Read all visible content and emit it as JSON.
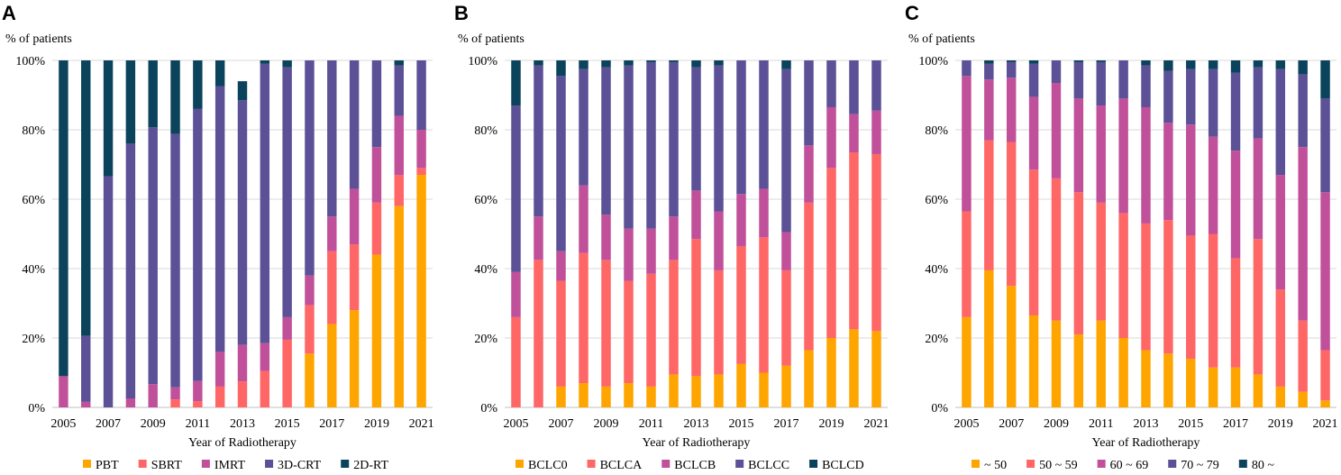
{
  "colors": {
    "s1": "#ffa500",
    "s2": "#ff6666",
    "s3": "#c1509a",
    "s4": "#5c5096",
    "s5": "#0c435c"
  },
  "chart_data": [
    {
      "panel": "A",
      "type": "bar",
      "stacked": true,
      "title": "",
      "ylabel": "% of patients",
      "xlabel": "Year of Radiotherapy",
      "ylim": [
        0,
        100
      ],
      "yticks": [
        "0%",
        "20%",
        "40%",
        "60%",
        "80%",
        "100%"
      ],
      "categories": [
        "2005",
        "2006",
        "2007",
        "2008",
        "2009",
        "2010",
        "2011",
        "2012",
        "2013",
        "2014",
        "2015",
        "2016",
        "2017",
        "2018",
        "2019",
        "2020",
        "2021"
      ],
      "xtick_labels": [
        "2005",
        "",
        "2007",
        "",
        "2009",
        "",
        "2011",
        "",
        "2013",
        "",
        "2015",
        "",
        "2017",
        "",
        "2019",
        "",
        "2021"
      ],
      "legend_position": "bottom",
      "series": [
        {
          "name": "PBT",
          "values": [
            0,
            0,
            0,
            0,
            0,
            0,
            0,
            0,
            0,
            0,
            0,
            15.5,
            24,
            28,
            44,
            58,
            67
          ]
        },
        {
          "name": "SBRT",
          "values": [
            0,
            0,
            0,
            0,
            0,
            2.3,
            1.8,
            6,
            7.5,
            10.5,
            19.5,
            14,
            21,
            19,
            15,
            9,
            2
          ]
        },
        {
          "name": "IMRT",
          "values": [
            9,
            1.6,
            0,
            2.6,
            6.7,
            3.5,
            5.8,
            10,
            10.5,
            8,
            6.5,
            8.5,
            10,
            16,
            16,
            17,
            11
          ]
        },
        {
          "name": "3D-CRT",
          "values": [
            0,
            19,
            66.6,
            73.4,
            74,
            73,
            78.4,
            76.5,
            70.5,
            80.5,
            72,
            62,
            45,
            37,
            25,
            14.5,
            20
          ]
        },
        {
          "name": "2D-RT",
          "values": [
            91,
            79.4,
            33.4,
            24,
            19.3,
            21.2,
            14,
            7.5,
            5.5,
            1,
            2,
            0,
            0,
            0,
            0,
            1.5,
            0
          ]
        }
      ]
    },
    {
      "panel": "B",
      "type": "bar",
      "stacked": true,
      "title": "",
      "ylabel": "% of patients",
      "xlabel": "Year of Radiotherapy",
      "ylim": [
        0,
        100
      ],
      "yticks": [
        "0%",
        "20%",
        "40%",
        "60%",
        "80%",
        "100%"
      ],
      "categories": [
        "2005",
        "2006",
        "2007",
        "2008",
        "2009",
        "2010",
        "2011",
        "2012",
        "2013",
        "2014",
        "2015",
        "2016",
        "2017",
        "2018",
        "2019",
        "2020",
        "2021"
      ],
      "xtick_labels": [
        "2005",
        "",
        "2007",
        "",
        "2009",
        "",
        "2011",
        "",
        "2013",
        "",
        "2015",
        "",
        "2017",
        "",
        "2019",
        "",
        "2021"
      ],
      "legend_position": "bottom",
      "series": [
        {
          "name": "BCLC0",
          "values": [
            0,
            0,
            6,
            7,
            6,
            7,
            6,
            9.5,
            9,
            9.5,
            12.5,
            10,
            12,
            16.5,
            20,
            22.5,
            22
          ]
        },
        {
          "name": "BCLCA",
          "values": [
            26,
            42.5,
            30.5,
            37.5,
            36.5,
            29.5,
            32.5,
            33,
            39.5,
            30,
            34,
            39,
            27.5,
            42.5,
            49,
            51,
            51
          ]
        },
        {
          "name": "BCLCB",
          "values": [
            13,
            12.5,
            8.5,
            19.5,
            13,
            15,
            13,
            12.5,
            14,
            17,
            15,
            14,
            11,
            16.5,
            17.5,
            11,
            12.5
          ]
        },
        {
          "name": "BCLCC",
          "values": [
            48,
            43.5,
            50.5,
            33.5,
            42.5,
            47,
            48,
            44.5,
            35.5,
            42,
            38.5,
            37,
            47,
            24.5,
            13.5,
            15.5,
            14.5
          ]
        },
        {
          "name": "BCLCD",
          "values": [
            13,
            1.5,
            4.5,
            2.5,
            2,
            1.5,
            0.5,
            0.5,
            2,
            1.5,
            0,
            0,
            2.5,
            0,
            0,
            0,
            0
          ]
        }
      ]
    },
    {
      "panel": "C",
      "type": "bar",
      "stacked": true,
      "title": "",
      "ylabel": "% of patients",
      "xlabel": "Year of Radiotherapy",
      "ylim": [
        0,
        100
      ],
      "yticks": [
        "0%",
        "20%",
        "40%",
        "60%",
        "80%",
        "100%"
      ],
      "categories": [
        "2005",
        "2006",
        "2007",
        "2008",
        "2009",
        "2010",
        "2011",
        "2012",
        "2013",
        "2014",
        "2015",
        "2016",
        "2017",
        "2018",
        "2019",
        "2020",
        "2021"
      ],
      "xtick_labels": [
        "2005",
        "",
        "2007",
        "",
        "2009",
        "",
        "2011",
        "",
        "2013",
        "",
        "2015",
        "",
        "2017",
        "",
        "2019",
        "",
        "2021"
      ],
      "legend_position": "bottom",
      "series": [
        {
          "name": "~ 50",
          "values": [
            26,
            39.5,
            35,
            26.5,
            25,
            21,
            25,
            20,
            16.5,
            15.5,
            14,
            11.5,
            11.5,
            9.5,
            6,
            4.5,
            2
          ]
        },
        {
          "name": "50 ~ 59",
          "values": [
            30.5,
            37.5,
            41.5,
            42,
            41,
            41,
            34,
            36,
            36.5,
            38.5,
            35.5,
            38.5,
            31.5,
            39,
            28,
            20.5,
            14.5
          ]
        },
        {
          "name": "60 ~ 69",
          "values": [
            39,
            17.5,
            18.5,
            21,
            27.5,
            27,
            28,
            33,
            33.5,
            28,
            32,
            28,
            31,
            29,
            33,
            50,
            45.5
          ]
        },
        {
          "name": "70 ~ 79",
          "values": [
            4.5,
            4.5,
            4.5,
            9.5,
            6.5,
            10.5,
            12.5,
            11,
            12,
            15,
            16,
            19.5,
            22.5,
            20.5,
            30.5,
            21,
            27
          ]
        },
        {
          "name": "80 ~",
          "values": [
            0,
            1,
            0.5,
            1,
            0,
            0.5,
            0.5,
            0,
            1.5,
            3,
            2.5,
            2.5,
            3.5,
            2,
            2.5,
            4,
            11
          ]
        }
      ]
    }
  ]
}
